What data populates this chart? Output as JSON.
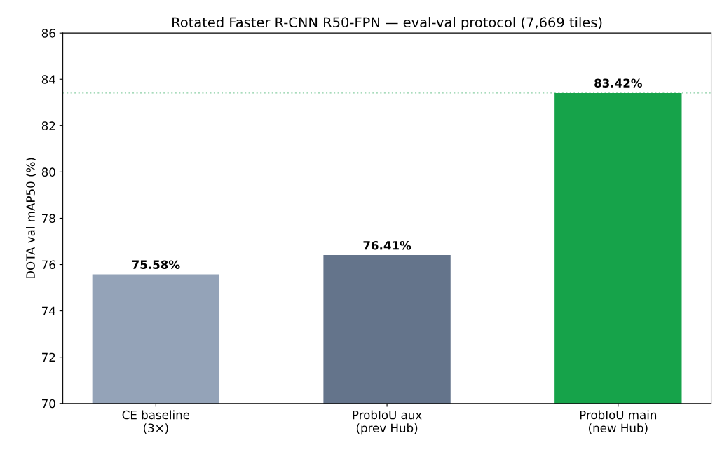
{
  "chart_data": {
    "type": "bar",
    "title": "Rotated Faster R-CNN R50-FPN — eval-val protocol (7,669 tiles)",
    "ylabel": "DOTA val mAP50 (%)",
    "categories": [
      "CE baseline\n(3×)",
      "ProbIoU aux\n(prev Hub)",
      "ProbIoU main\n(new Hub)"
    ],
    "values": [
      75.58,
      76.41,
      83.42
    ],
    "colors": [
      "#94a3b8",
      "#64748b",
      "#16a34a"
    ],
    "value_labels": [
      "75.58%",
      "76.41%",
      "83.42%"
    ],
    "ylim": [
      70,
      86
    ],
    "yticks": [
      70,
      72,
      74,
      76,
      78,
      80,
      82,
      84,
      86
    ],
    "ref_lines": [
      {
        "axis": "y",
        "value": 83.42,
        "color": "#8bcfa5",
        "line_style": "dotted"
      }
    ],
    "grid": false,
    "legend": false
  }
}
